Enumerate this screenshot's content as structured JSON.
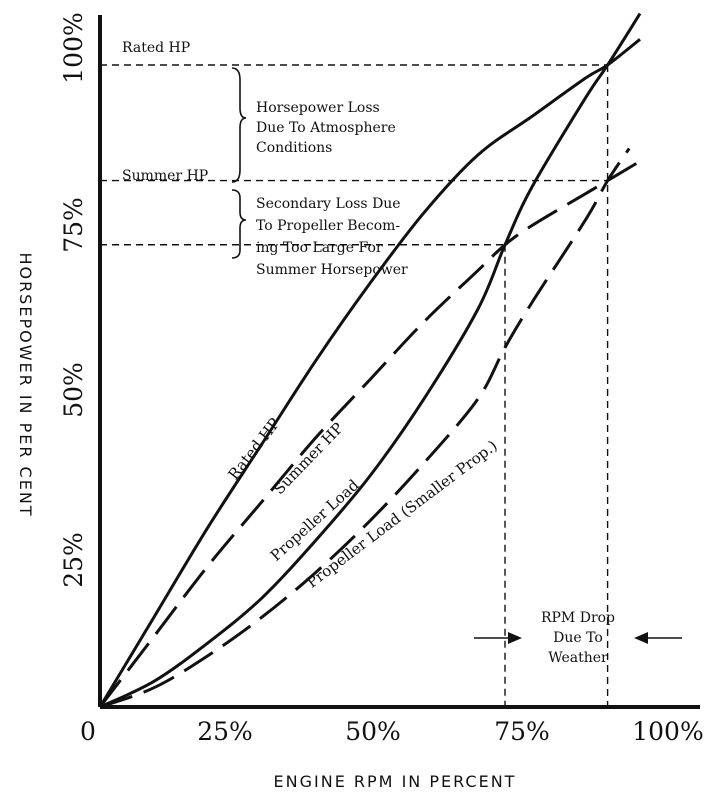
{
  "chart_data": {
    "type": "line",
    "xlabel": "ENGINE RPM IN PERCENT",
    "ylabel": "HORSEPOWER IN PER CENT",
    "xlim": [
      0,
      100
    ],
    "ylim": [
      0,
      100
    ],
    "x_ticks": [
      "0",
      "25%",
      "50%",
      "75%",
      "100%"
    ],
    "y_ticks": [
      "25%",
      "50%",
      "75%",
      "100%"
    ],
    "series": [
      {
        "name": "Rated HP",
        "style": "solid",
        "x": [
          0,
          10,
          20,
          30,
          40,
          50,
          60,
          70,
          80,
          90,
          94,
          100
        ],
        "y": [
          0,
          14,
          28,
          41,
          54,
          66,
          77,
          86,
          92,
          98,
          100,
          104
        ]
      },
      {
        "name": "Summer HP",
        "style": "dashed",
        "x": [
          0,
          10,
          20,
          30,
          40,
          50,
          60,
          70,
          75,
          80,
          90,
          94,
          100
        ],
        "y": [
          0,
          11,
          22,
          32,
          42,
          51,
          60,
          68,
          72,
          75,
          80,
          82,
          85
        ]
      },
      {
        "name": "Propeller Load",
        "style": "solid",
        "x": [
          0,
          10,
          20,
          30,
          40,
          50,
          60,
          70,
          75,
          80,
          90,
          94,
          100
        ],
        "y": [
          0,
          4,
          10,
          17,
          26,
          36,
          48,
          62,
          72,
          81,
          95,
          100,
          108
        ]
      },
      {
        "name": "Propeller Load (Smaller Prop.)",
        "style": "dashed",
        "x": [
          0,
          10,
          20,
          30,
          40,
          50,
          60,
          70,
          75,
          80,
          90,
          94,
          98
        ],
        "y": [
          0,
          3,
          8,
          14,
          21,
          29,
          38,
          48,
          56,
          63,
          76,
          82,
          87
        ]
      }
    ],
    "reference_lines": {
      "rated_hp": 100,
      "summer_hp": 82,
      "secondary": 72,
      "rpm_drop_start": 75,
      "rpm_drop_end": 94
    },
    "annotations": {
      "rated_hp_label": "Rated HP",
      "summer_hp_label": "Summer HP",
      "hp_loss": [
        "Horsepower Loss",
        "Due To Atmosphere",
        "Conditions"
      ],
      "secondary_loss": [
        "Secondary Loss Due",
        "To Propeller Becom-",
        "ing Too Large For",
        "Summer Horsepower"
      ],
      "rpm_drop": [
        "RPM Drop",
        "Due To",
        "Weather"
      ]
    }
  }
}
